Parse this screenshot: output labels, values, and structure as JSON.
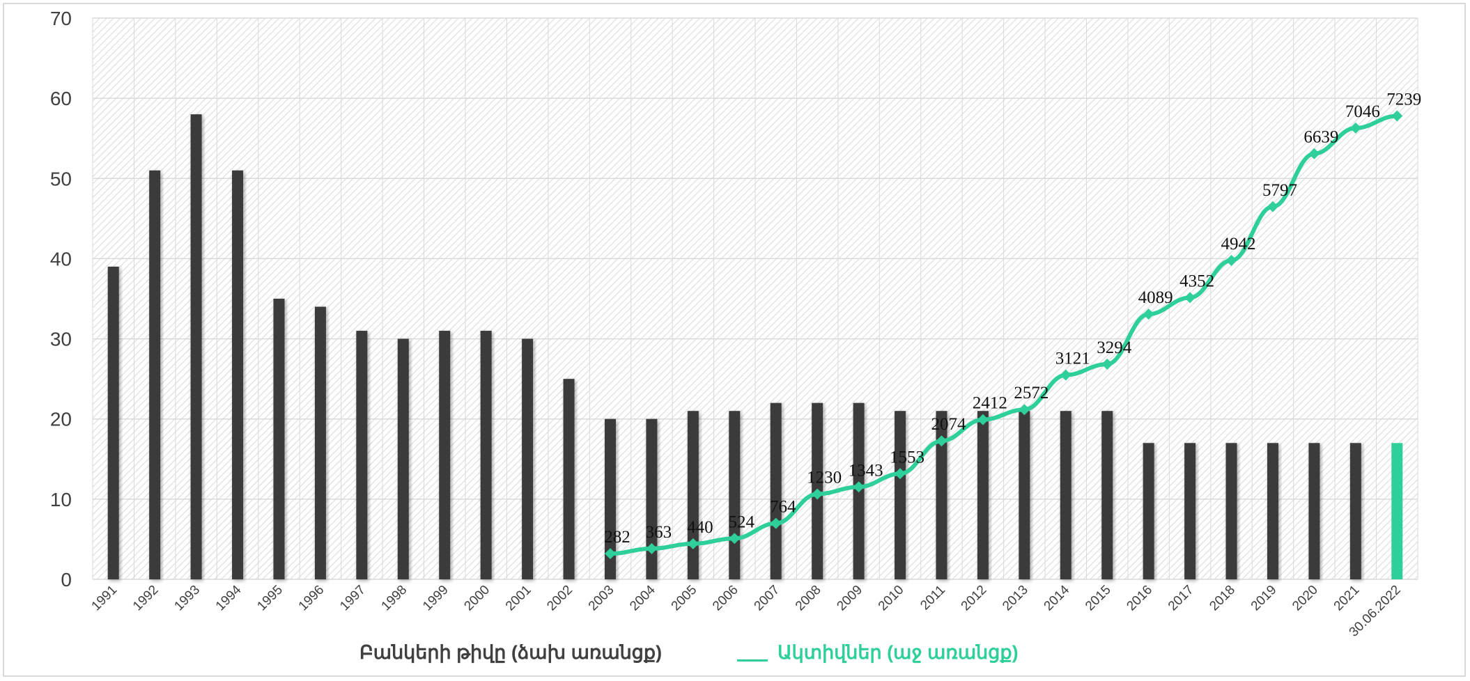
{
  "colors": {
    "bar": "#3b3b3b",
    "bar_highlight": "#2ecf9a",
    "line": "#2ecf9a",
    "grid": "#d9d9d9",
    "axis_text": "#404040"
  },
  "chart_data": {
    "type": "bar",
    "title": "",
    "xlabel": "",
    "ylabel": "",
    "ylim": [
      0,
      70
    ],
    "yticks": [
      0,
      10,
      20,
      30,
      40,
      50,
      60,
      70
    ],
    "grid": true,
    "legend_position": "bottom",
    "categories": [
      "1991",
      "1992",
      "1993",
      "1994",
      "1995",
      "1996",
      "1997",
      "1998",
      "1999",
      "2000",
      "2001",
      "2002",
      "2003",
      "2004",
      "2005",
      "2006",
      "2007",
      "2008",
      "2009",
      "2010",
      "2011",
      "2012",
      "2013",
      "2014",
      "2015",
      "2016",
      "2017",
      "2018",
      "2019",
      "2020",
      "2021",
      "30.06.2022"
    ],
    "series": [
      {
        "name": "Բանկերի թիվը (ձախ առանցք)",
        "type": "bar",
        "axis": "left",
        "values": [
          39,
          51,
          58,
          51,
          35,
          34,
          31,
          30,
          31,
          31,
          30,
          25,
          20,
          20,
          21,
          21,
          22,
          22,
          22,
          21,
          21,
          21,
          21,
          21,
          21,
          17,
          17,
          17,
          17,
          17,
          17,
          17
        ]
      },
      {
        "name": "Ակտիվներ  (աջ առանցք)",
        "type": "line",
        "axis": "right",
        "x": [
          "2003",
          "2004",
          "2005",
          "2006",
          "2007",
          "2008",
          "2009",
          "2010",
          "2011",
          "2012",
          "2013",
          "2014",
          "2015",
          "2016",
          "2017",
          "2018",
          "2019",
          "2020",
          "2021",
          "30.06.2022"
        ],
        "values": [
          282,
          363,
          440,
          524,
          764,
          1230,
          1343,
          1553,
          2074,
          2412,
          2572,
          3121,
          3294,
          4089,
          4352,
          4942,
          5797,
          6639,
          7046,
          7239
        ],
        "labels": [
          "282",
          "363",
          "440",
          "524",
          "764",
          "1230",
          "1343",
          "1553",
          "2074",
          "2412",
          "2572",
          "3121",
          "3294",
          "4089",
          "4352",
          "4942",
          "5797",
          "6639",
          "7046",
          "7239"
        ]
      }
    ]
  },
  "legend": {
    "bars": "Բանկերի թիվը (ձախ առանցք)",
    "line": "Ակտիվներ  (աջ առանցք)"
  }
}
